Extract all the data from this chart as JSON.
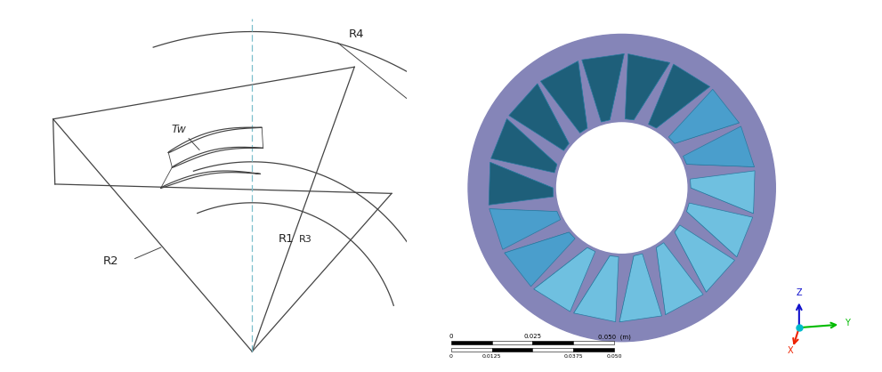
{
  "bg_color": "#ffffff",
  "left_panel": {
    "label_R4": "R4",
    "label_R1": "R1",
    "label_R2": "R2",
    "label_R3": "R3",
    "label_Tw": "Tw",
    "line_color": "#444444",
    "cyan_line_color": "#7bbfcc"
  },
  "right_panel": {
    "ring_outer_color": "#8585b8",
    "blade_face_color": "#4a9ecc",
    "blade_dark_color": "#1e5f7a",
    "blade_light_color": "#6fc0e0",
    "blade_edge_color": "#2a7aa0",
    "n_blades": 18
  },
  "axis_colors": {
    "x_color": "#00bb00",
    "y_color": "#ee2200",
    "z_color": "#1111cc",
    "dot_color": "#00bbcc"
  },
  "apex": [
    5.85,
    0.55
  ],
  "tl": [
    0.5,
    6.8
  ],
  "tr": [
    8.6,
    8.2
  ],
  "rm": [
    9.6,
    4.8
  ],
  "r_outer": 8.6,
  "r_inner1": 5.1,
  "r_inner2": 4.0
}
